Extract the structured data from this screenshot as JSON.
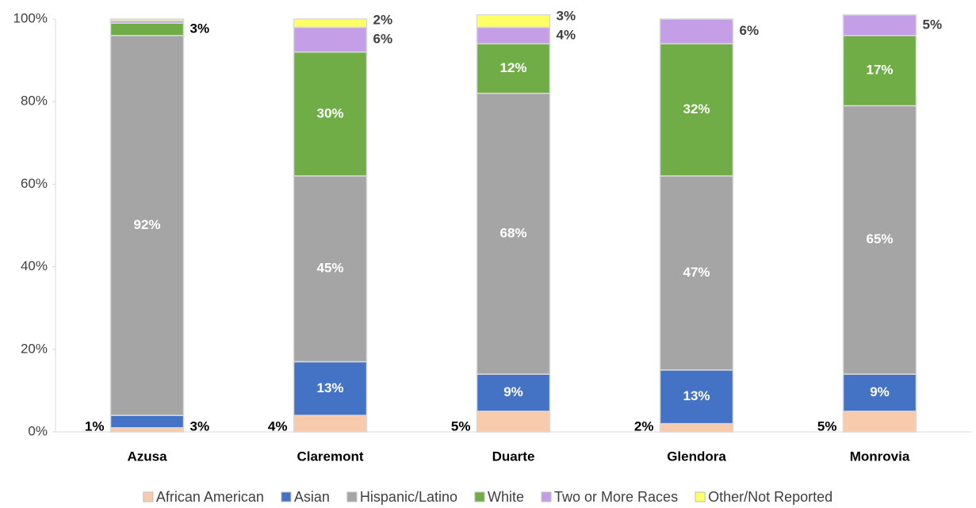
{
  "chart_data": {
    "type": "stacked_bar",
    "categories": [
      "Azusa",
      "Claremont",
      "Duarte",
      "Glendora",
      "Monrovia"
    ],
    "series": [
      {
        "name": "African American",
        "color": "#f8cbad",
        "values": [
          1,
          4,
          5,
          2,
          5
        ],
        "value_labels": [
          "1%",
          "4%",
          "5%",
          "2%",
          "5%"
        ]
      },
      {
        "name": "Asian",
        "color": "#4472c4",
        "values": [
          3,
          13,
          9,
          13,
          9
        ],
        "value_labels": [
          "3%",
          "13%",
          "9%",
          "13%",
          "9%"
        ]
      },
      {
        "name": "Hispanic/Latino",
        "color": "#a5a5a5",
        "values": [
          92,
          45,
          68,
          47,
          65
        ],
        "value_labels": [
          "92%",
          "45%",
          "68%",
          "47%",
          "65%"
        ]
      },
      {
        "name": "White",
        "color": "#70ad47",
        "values": [
          3,
          30,
          12,
          32,
          17
        ],
        "value_labels": [
          "3%",
          "30%",
          "12%",
          "32%",
          "17%"
        ]
      },
      {
        "name": "Two or More Races",
        "color": "#c59ee8",
        "values": [
          0.6,
          6,
          4,
          6,
          5
        ],
        "value_labels": [
          null,
          "6%",
          "4%",
          "6%",
          "5%"
        ]
      },
      {
        "name": "Other/Not Reported",
        "color": "#ffff66",
        "values": [
          0.4,
          2,
          3,
          0,
          0
        ],
        "value_labels": [
          null,
          "2%",
          "3%",
          null,
          null
        ]
      }
    ],
    "ylim": [
      0,
      100
    ],
    "yticks": [
      {
        "value": 0,
        "label": "0%"
      },
      {
        "value": 20,
        "label": "20%"
      },
      {
        "value": 40,
        "label": "40%"
      },
      {
        "value": 60,
        "label": "60%"
      },
      {
        "value": 80,
        "label": "80%"
      },
      {
        "value": 100,
        "label": "100%"
      }
    ]
  }
}
